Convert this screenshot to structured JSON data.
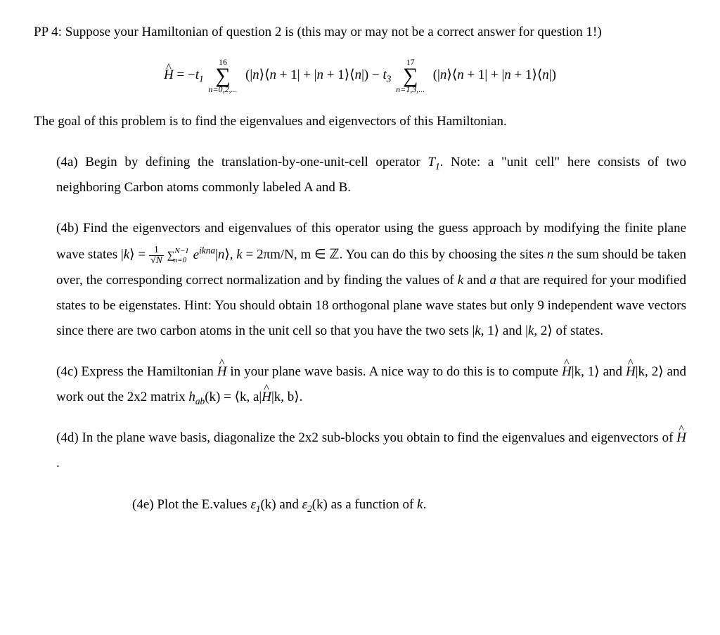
{
  "problem_label": "PP 4:",
  "intro_text": "Suppose your Hamiltonian of question 2 is (this may or may not be a correct answer for question 1!)",
  "equation": {
    "lhs": "Ĥ = ",
    "term1_coeff": "−t₁",
    "sum1_upper": "16",
    "sum1_lower": "n=0,2,...",
    "projector": "(|n⟩⟨n + 1| + |n + 1⟩⟨n|)",
    "minus": " − ",
    "term2_coeff": "t₃",
    "sum2_upper": "17",
    "sum2_lower": "n=1,3,..."
  },
  "goal": "The goal of this problem is to find the eigenvalues and eigenvectors of this Hamiltonian.",
  "parts": {
    "a": {
      "label": "(4a)",
      "text_1": "Begin by defining the translation-by-one-unit-cell operator ",
      "T1": "T₁",
      "text_2": ". Note: a \"unit cell\" here consists of two neighboring Carbon atoms commonly labeled A and B."
    },
    "b": {
      "label": "(4b)",
      "text_1": "Find the eigenvectors and eigenvalues of this operator using the guess approach by modifying the finite plane wave states |",
      "k": "k",
      "text_2": "⟩ = ",
      "frac_num": "1",
      "frac_den": "√N",
      "sum_upper": "N−1",
      "sum_lower": "n=0",
      "exp": "eikna",
      "text_3": "|n⟩, ",
      "k2": "k",
      "text_4": " = 2πm/N, m ∈ ℤ. You can do this by choosing the sites ",
      "n": "n",
      "text_5": " the sum should be taken over, the corresponding correct normalization and by finding the values of ",
      "k3": "k",
      "text_6": " and ",
      "a": "a",
      "text_7": " that are required for your modified states to be eigenstates. Hint: You should obtain 18 orthogonal plane wave states but only 9 independent wave vectors since there are two carbon atoms in the unit cell so that you have the two sets |",
      "k4": "k",
      "text_8": ", 1⟩ and |",
      "k5": "k",
      "text_9": ", 2⟩ of states."
    },
    "c": {
      "label": "(4c)",
      "text_1": "Express the Hamiltonian ",
      "H": "Ĥ",
      "text_2": " in your plane wave basis. A nice way to do this is to compute ",
      "H2": "Ĥ",
      "text_3": "|k, 1⟩ and ",
      "H3": "Ĥ",
      "text_4": "|k, 2⟩ and work out the 2x2 matrix ",
      "hab": "hab",
      "text_5": "(k) = ⟨k, a|",
      "H4": "Ĥ",
      "text_6": "|k, b⟩."
    },
    "d": {
      "label": "(4d)",
      "text_1": "In the plane wave basis, diagonalize the 2x2 sub-blocks you obtain to find the eigenvalues and eigenvectors of ",
      "H": "Ĥ",
      "text_2": "."
    },
    "e": {
      "label": "(4e)",
      "text_1": "Plot the E.values ",
      "e1": "ε₁",
      "text_2": "(k) and ",
      "e2": "ε₂",
      "text_3": "(k) as a function of ",
      "k": "k",
      "text_4": "."
    }
  },
  "colors": {
    "background": "#ffffff",
    "text": "#000000"
  },
  "typography": {
    "body_fontsize": 19,
    "font_family": "Times New Roman"
  }
}
